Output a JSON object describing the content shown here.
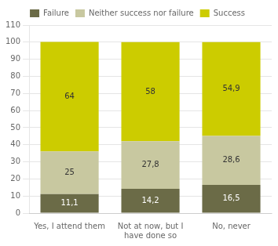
{
  "chart_data": {
    "type": "bar",
    "stacked": true,
    "categories": [
      "Yes, I attend them",
      "Not at now, but I\nhave done so",
      "No, never"
    ],
    "series": [
      {
        "name": "Failure",
        "color": "#6b6b47",
        "values": [
          11.1,
          14.2,
          16.5
        ],
        "value_labels": [
          "11,1",
          "14,2",
          "16,5"
        ]
      },
      {
        "name": "Neither success nor failure",
        "color": "#c8c8a0",
        "values": [
          25.0,
          27.8,
          28.6
        ],
        "value_labels": [
          "25",
          "27,8",
          "28,6"
        ]
      },
      {
        "name": "Success",
        "color": "#cccc00",
        "values": [
          64.0,
          58.0,
          54.9
        ],
        "value_labels": [
          "64",
          "58",
          "54,9"
        ]
      }
    ],
    "ylim": [
      0,
      110
    ],
    "yticks": [
      0,
      10,
      20,
      30,
      40,
      50,
      60,
      70,
      80,
      90,
      100,
      110
    ],
    "grid": true,
    "legend": "top",
    "data_labels": true
  }
}
